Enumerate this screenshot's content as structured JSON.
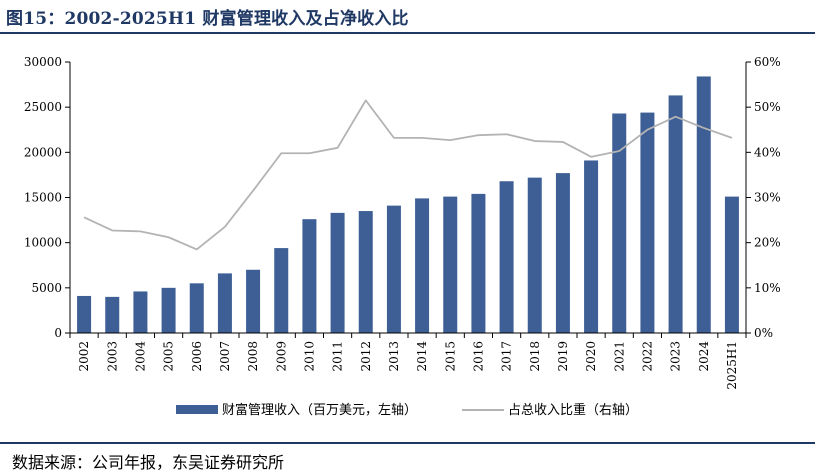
{
  "figure": {
    "title": "图15：2002-2025H1 财富管理收入及占净收入比",
    "source": "数据来源：公司年报，东吴证券研究所"
  },
  "colors": {
    "bar": "#3d5f96",
    "line": "#b3b3b3",
    "rule": "#1f3864"
  },
  "chart_data": {
    "type": "bar",
    "categories": [
      "2002",
      "2003",
      "2004",
      "2005",
      "2006",
      "2007",
      "2008",
      "2009",
      "2010",
      "2011",
      "2012",
      "2013",
      "2014",
      "2015",
      "2016",
      "2017",
      "2018",
      "2019",
      "2020",
      "2021",
      "2022",
      "2023",
      "2024",
      "2025H1"
    ],
    "series": [
      {
        "name": "财富管理收入（百万美元，左轴）",
        "type": "bar",
        "axis": "left",
        "values": [
          4100,
          4000,
          4600,
          5000,
          5500,
          6600,
          7000,
          9400,
          12600,
          13300,
          13500,
          14100,
          14900,
          15100,
          15400,
          16800,
          17200,
          17700,
          19100,
          24300,
          24400,
          26300,
          28400,
          15100
        ]
      },
      {
        "name": "占总收入比重（右轴）",
        "type": "line",
        "axis": "right",
        "values": [
          25.6,
          22.7,
          22.5,
          21.2,
          18.5,
          23.5,
          31.5,
          39.8,
          39.8,
          41.0,
          51.5,
          43.2,
          43.2,
          42.7,
          43.8,
          44.0,
          42.5,
          42.3,
          39.0,
          40.3,
          45.0,
          47.9,
          45.4,
          43.2
        ]
      }
    ],
    "y_left": {
      "min": 0,
      "max": 30000,
      "ticks": [
        "0",
        "5000",
        "10000",
        "15000",
        "20000",
        "25000",
        "30000"
      ]
    },
    "y_right": {
      "min": 0,
      "max": 60,
      "ticks": [
        "0%",
        "10%",
        "20%",
        "30%",
        "40%",
        "50%",
        "60%"
      ]
    },
    "grid": false,
    "legend_position": "bottom"
  }
}
